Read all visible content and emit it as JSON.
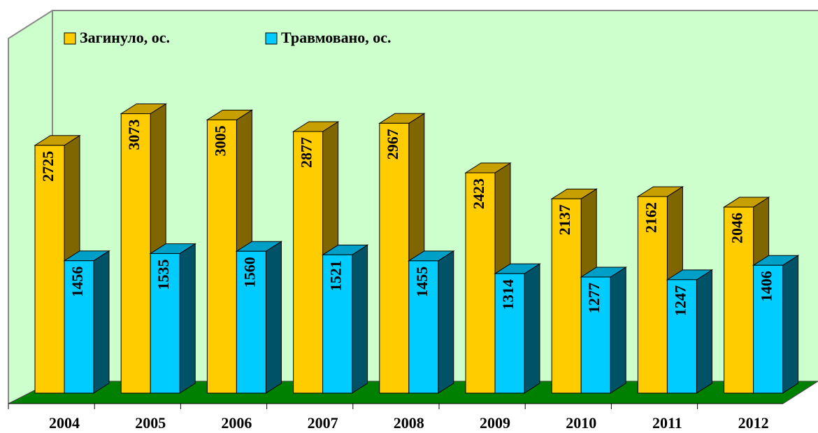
{
  "chart_data": {
    "type": "bar3d",
    "categories": [
      "2004",
      "2005",
      "2006",
      "2007",
      "2008",
      "2009",
      "2010",
      "2011",
      "2012"
    ],
    "series": [
      {
        "name": "Загинуло, ос.",
        "color": "#ffcc00",
        "values": [
          2725,
          3073,
          3005,
          2877,
          2967,
          2423,
          2137,
          2162,
          2046
        ]
      },
      {
        "name": "Травмовано, ос.",
        "color": "#00ccff",
        "values": [
          1456,
          1535,
          1560,
          1521,
          1455,
          1314,
          1277,
          1247,
          1406
        ]
      }
    ],
    "ylim": [
      0,
      4000
    ]
  }
}
